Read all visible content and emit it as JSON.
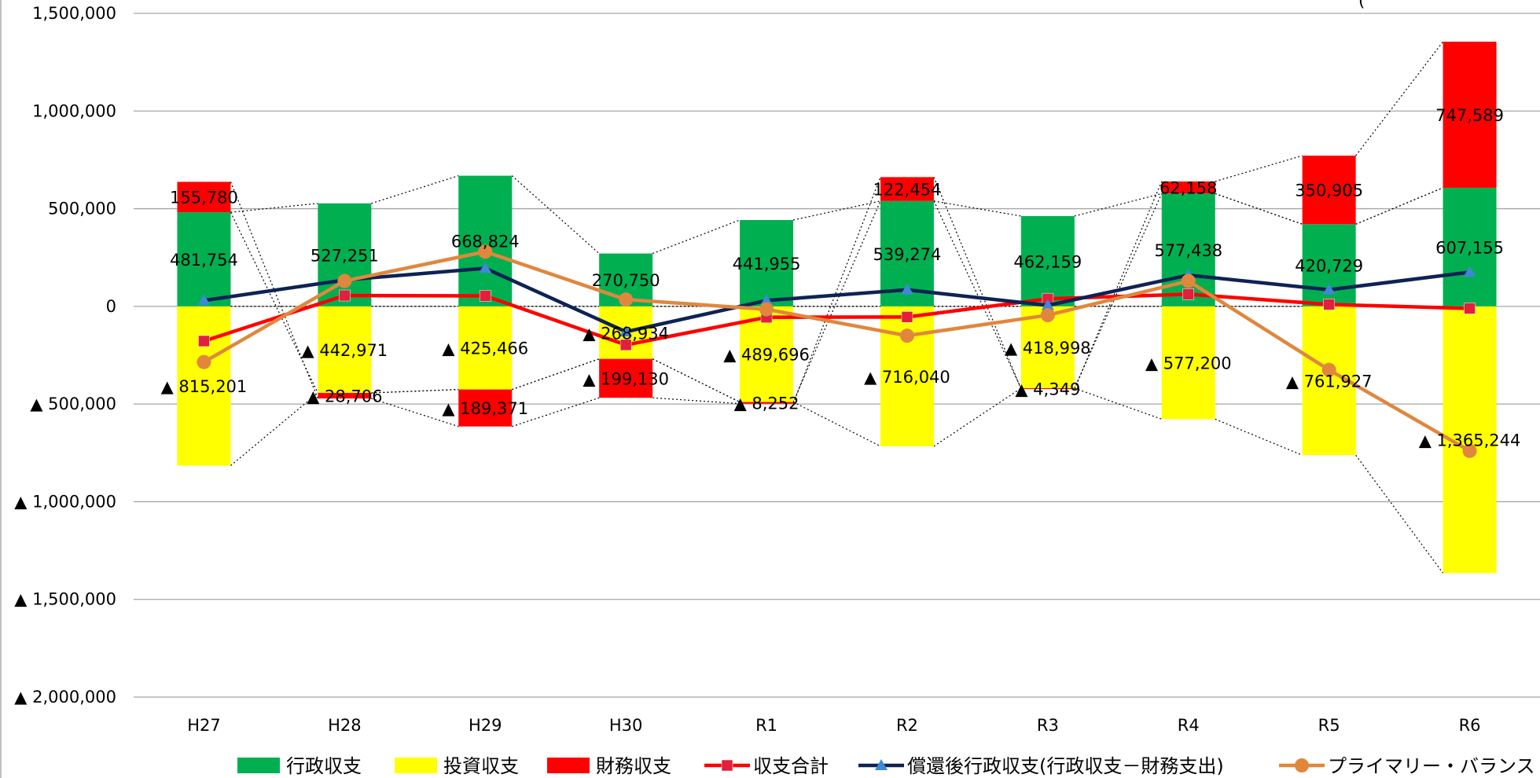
{
  "chart_data": {
    "type": "bar",
    "stacked": true,
    "categories": [
      "H27",
      "H28",
      "H29",
      "H30",
      "R1",
      "R2",
      "R3",
      "R4",
      "R5",
      "R6"
    ],
    "ylim": [
      -2000000,
      1500000
    ],
    "yticks": [
      1500000,
      1000000,
      500000,
      0,
      -500000,
      -1000000,
      -1500000,
      -2000000
    ],
    "ytick_labels": [
      "1,500,000",
      "1,000,000",
      "500,000",
      "0",
      "▲ 500,000",
      "▲ 1,000,000",
      "▲ 1,500,000",
      "▲ 2,000,000"
    ],
    "grid": true,
    "legend_position": "bottom",
    "unit_label": "(",
    "series": [
      {
        "name": "行政収支",
        "kind": "bar",
        "color": "#00b050",
        "values": [
          481754,
          527251,
          668824,
          270750,
          441955,
          539274,
          462159,
          577438,
          420729,
          607155
        ],
        "labels": [
          "481,754",
          "527,251",
          "668,824",
          "270,750",
          "441,955",
          "539,274",
          "462,159",
          "577,438",
          "420,729",
          "607,155"
        ]
      },
      {
        "name": "投資収支",
        "kind": "bar",
        "color": "#ffff00",
        "values": [
          -815201,
          -442971,
          -425466,
          -268934,
          -489696,
          -716040,
          -418998,
          -577200,
          -761927,
          -1365244
        ],
        "labels": [
          "▲ 815,201",
          "▲ 442,971",
          "▲ 425,466",
          "▲ 268,934",
          "▲ 489,696",
          "▲ 716,040",
          "▲ 418,998",
          "▲ 577,200",
          "▲ 761,927",
          "▲ 1,365,244"
        ]
      },
      {
        "name": "財務収支",
        "kind": "bar",
        "color": "#ff0000",
        "values": [
          155780,
          -28706,
          -189371,
          -199130,
          -8252,
          122454,
          -4349,
          62158,
          350905,
          747589
        ],
        "labels": [
          "155,780",
          "▲ 28,706",
          "▲ 189,371",
          "▲ 199,130",
          "▲ 8,252",
          "122,454",
          "▲ 4,349",
          "62,158",
          "350,905",
          "747,589"
        ]
      },
      {
        "name": "収支合計",
        "kind": "line",
        "color": "#ff0000",
        "marker": "square",
        "marker_color": "#e0203c",
        "values": [
          -177667,
          55574,
          53987,
          -197314,
          -55993,
          -54312,
          38812,
          62396,
          9707,
          -10500
        ]
      },
      {
        "name": "償還後行政収支(行政収支－財務支出)",
        "kind": "line",
        "color": "#0e2254",
        "marker": "triangle",
        "marker_color": "#3e88d6",
        "values": [
          30000,
          135000,
          195000,
          -130000,
          30000,
          85000,
          5000,
          160000,
          85000,
          175000
        ]
      },
      {
        "name": "プライマリー・バランス",
        "kind": "line",
        "color": "#e0873d",
        "marker": "circle",
        "marker_color": "#e0873d",
        "values": [
          -285000,
          130000,
          280000,
          35000,
          -15000,
          -150000,
          -45000,
          130000,
          -325000,
          -740000
        ]
      }
    ]
  }
}
